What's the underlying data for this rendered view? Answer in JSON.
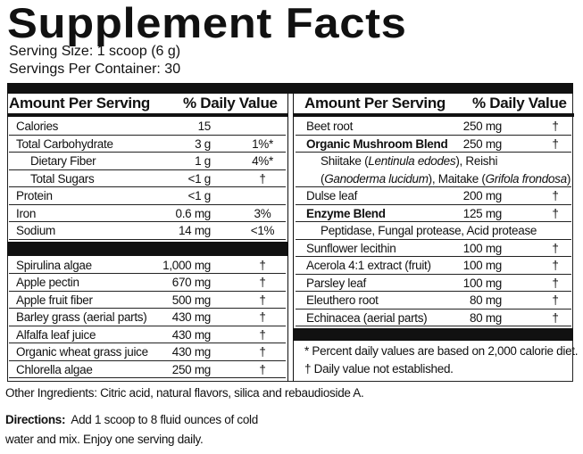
{
  "title": "Supplement Facts",
  "serving_size": "Serving Size:  1 scoop (6 g)",
  "servings_per_container": "Servings Per Container: 30",
  "left": {
    "header": [
      "Amount Per Serving",
      "% Daily Value"
    ],
    "rows": [
      {
        "name": "Calories",
        "amount": "15",
        "dv": ""
      },
      {
        "name": "Total Carbohydrate",
        "amount": "3 g",
        "dv": "1%*"
      },
      {
        "name": "Dietary Fiber",
        "amount": "1 g",
        "dv": "4%*",
        "level": 1
      },
      {
        "name": "Total Sugars",
        "amount": "<1 g",
        "dv": "†",
        "level": 1
      },
      {
        "name": "Protein",
        "amount": "<1 g",
        "dv": ""
      },
      {
        "name": "Iron",
        "amount": "0.6 mg",
        "dv": "3%"
      },
      {
        "name": "Sodium",
        "amount": "14 mg",
        "dv": "<1%"
      }
    ],
    "rows2": [
      {
        "name": "Spirulina algae",
        "amount": "1,000 mg",
        "dv": "†"
      },
      {
        "name": "Apple pectin",
        "amount": "670 mg",
        "dv": "†"
      },
      {
        "name": "Apple fruit fiber",
        "amount": "500 mg",
        "dv": "†"
      },
      {
        "name": "Barley grass (aerial parts)",
        "amount": "430 mg",
        "dv": "†"
      },
      {
        "name": "Alfalfa leaf juice",
        "amount": "430 mg",
        "dv": "†"
      },
      {
        "name": "Organic wheat grass juice",
        "amount": "430 mg",
        "dv": "†"
      },
      {
        "name": "Chlorella algae",
        "amount": "250 mg",
        "dv": "†"
      }
    ]
  },
  "right": {
    "header": [
      "Amount Per Serving",
      "% Daily Value"
    ],
    "rows": [
      {
        "name": "Beet root",
        "amount": "250 mg",
        "dv": "†"
      },
      {
        "name": "Organic Mushroom Blend",
        "amount": "250 mg",
        "dv": "†",
        "bold": true
      },
      {
        "note": [
          {
            "text": "Shiitake ("
          },
          {
            "text": "Lentinula edodes",
            "italic": true
          },
          {
            "text": "), Reishi"
          }
        ]
      },
      {
        "note": [
          {
            "text": "("
          },
          {
            "text": "Ganoderma lucidum",
            "italic": true
          },
          {
            "text": "), Maitake ("
          },
          {
            "text": "Grifola frondosa",
            "italic": true
          },
          {
            "text": ")"
          }
        ]
      },
      {
        "name": "Dulse leaf",
        "amount": "200 mg",
        "dv": "†"
      },
      {
        "name": "Enzyme Blend",
        "amount": "125 mg",
        "dv": "†",
        "bold": true
      },
      {
        "note": [
          {
            "text": "Peptidase, Fungal protease, Acid protease"
          }
        ]
      },
      {
        "name": "Sunflower lecithin",
        "amount": "100 mg",
        "dv": "†"
      },
      {
        "name": "Acerola 4:1 extract (fruit)",
        "amount": "100 mg",
        "dv": "†"
      },
      {
        "name": "Parsley leaf",
        "amount": "100 mg",
        "dv": "†"
      },
      {
        "name": "Eleuthero root",
        "amount": "80 mg",
        "dv": "†"
      },
      {
        "name": "Echinacea (aerial parts)",
        "amount": "80 mg",
        "dv": "†"
      }
    ],
    "footnotes": [
      "* Percent daily values are based on 2,000 calorie diet.",
      "† Daily value not established."
    ]
  },
  "other_ingredients": "Other Ingredients: Citric acid, natural flavors, silica and rebaudioside A.",
  "directions": {
    "label": "Directions:",
    "text": "Add 1 scoop to 8 fluid ounces of cold water and mix. Enjoy one serving daily."
  }
}
